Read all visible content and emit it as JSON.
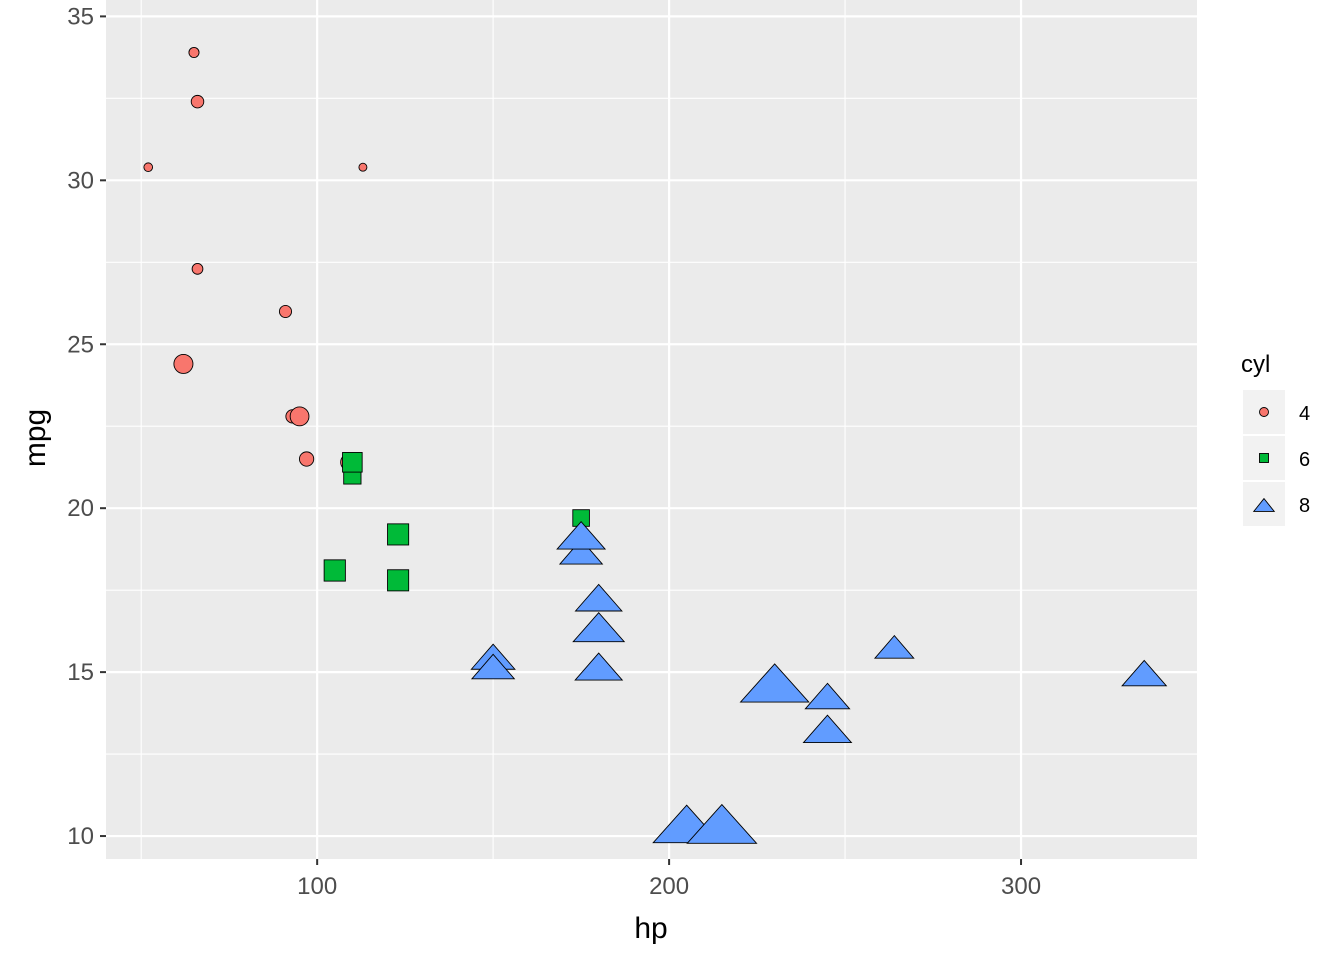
{
  "chart_data": {
    "type": "scatter",
    "title": "",
    "xlabel": "hp",
    "ylabel": "mpg",
    "xlim": [
      40,
      350
    ],
    "ylim": [
      9.3,
      35.5
    ],
    "x_ticks": [
      100,
      200,
      300
    ],
    "y_ticks": [
      10,
      15,
      20,
      25,
      30,
      35
    ],
    "grid": true,
    "legend": {
      "title": "cyl",
      "placement": "right",
      "entries": [
        {
          "label": "4",
          "shape": "circle",
          "color": "#F8766D"
        },
        {
          "label": "6",
          "shape": "square",
          "color": "#00BA38"
        },
        {
          "label": "8",
          "shape": "triangle",
          "color": "#619CFF"
        }
      ]
    },
    "series": [
      {
        "name": "4",
        "shape": "circle",
        "color": "#F8766D",
        "points": [
          {
            "x": 93,
            "y": 22.8,
            "size": 2.32
          },
          {
            "x": 62,
            "y": 24.4,
            "size": 3.19
          },
          {
            "x": 95,
            "y": 22.8,
            "size": 3.15
          },
          {
            "x": 66,
            "y": 32.4,
            "size": 2.2
          },
          {
            "x": 52,
            "y": 30.4,
            "size": 1.615
          },
          {
            "x": 65,
            "y": 33.9,
            "size": 1.835
          },
          {
            "x": 97,
            "y": 21.5,
            "size": 2.465
          },
          {
            "x": 66,
            "y": 27.3,
            "size": 1.935
          },
          {
            "x": 91,
            "y": 26.0,
            "size": 2.14
          },
          {
            "x": 113,
            "y": 30.4,
            "size": 1.513
          },
          {
            "x": 109,
            "y": 21.4,
            "size": 2.78
          }
        ]
      },
      {
        "name": "6",
        "shape": "square",
        "color": "#00BA38",
        "points": [
          {
            "x": 110,
            "y": 21.0,
            "size": 2.62
          },
          {
            "x": 110,
            "y": 21.0,
            "size": 2.875
          },
          {
            "x": 110,
            "y": 21.4,
            "size": 3.215
          },
          {
            "x": 105,
            "y": 18.1,
            "size": 3.46
          },
          {
            "x": 123,
            "y": 19.2,
            "size": 3.44
          },
          {
            "x": 123,
            "y": 17.8,
            "size": 3.44
          },
          {
            "x": 175,
            "y": 19.7,
            "size": 2.77
          }
        ]
      },
      {
        "name": "8",
        "shape": "triangle",
        "color": "#619CFF",
        "points": [
          {
            "x": 175,
            "y": 18.7,
            "size": 3.44
          },
          {
            "x": 245,
            "y": 14.3,
            "size": 3.57
          },
          {
            "x": 180,
            "y": 16.4,
            "size": 4.07
          },
          {
            "x": 180,
            "y": 17.3,
            "size": 3.73
          },
          {
            "x": 180,
            "y": 15.2,
            "size": 3.78
          },
          {
            "x": 205,
            "y": 10.4,
            "size": 5.25
          },
          {
            "x": 215,
            "y": 10.4,
            "size": 5.424
          },
          {
            "x": 230,
            "y": 14.7,
            "size": 5.345
          },
          {
            "x": 150,
            "y": 15.5,
            "size": 3.52
          },
          {
            "x": 150,
            "y": 15.2,
            "size": 3.435
          },
          {
            "x": 245,
            "y": 13.3,
            "size": 3.84
          },
          {
            "x": 175,
            "y": 19.2,
            "size": 3.845
          },
          {
            "x": 264,
            "y": 15.8,
            "size": 3.17
          },
          {
            "x": 335,
            "y": 15.0,
            "size": 3.57
          }
        ]
      }
    ]
  }
}
